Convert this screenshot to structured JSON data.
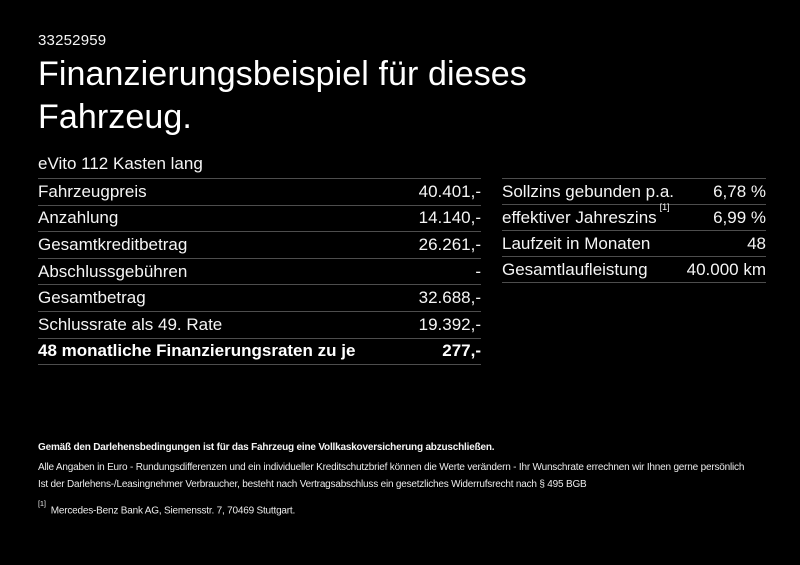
{
  "header": {
    "vehicle_id": "33252959",
    "title_line1": "Finanzierungsbeispiel für dieses",
    "title_line2": "Fahrzeug.",
    "model": "eVito 112 Kasten lang"
  },
  "finance_table": {
    "rows": [
      {
        "label": "Fahrzeugpreis",
        "value": "40.401,-"
      },
      {
        "label": "Anzahlung",
        "value": "14.140,-"
      },
      {
        "label": "Gesamtkreditbetrag",
        "value": "26.261,-"
      },
      {
        "label": "Abschlussgebühren",
        "value": "-"
      },
      {
        "label": "Gesamtbetrag",
        "value": "32.688,-"
      },
      {
        "label": "Schlussrate als 49. Rate",
        "value": "19.392,-"
      }
    ],
    "highlight_row": {
      "label": "48 monatliche Finanzierungsraten zu je",
      "value": "277,-"
    }
  },
  "conditions_table": {
    "rows": [
      {
        "label": "Sollzins gebunden p.a.",
        "value": "6,78 %"
      },
      {
        "label": "effektiver Jahreszins",
        "footnote_marker": "[1]",
        "value": "6,99 %"
      },
      {
        "label": "Laufzeit in Monaten",
        "value": "48"
      },
      {
        "label": "Gesamtlaufleistung",
        "value": "40.000 km"
      }
    ]
  },
  "disclaimer": {
    "insurance_note": "Gemäß den Darlehensbedingungen ist für das Fahrzeug eine Vollkaskoversicherung abzuschließen.",
    "note_line1": "Alle Angaben in Euro - Rundungsdifferenzen und ein individueller Kreditschutzbrief können die Werte verändern - Ihr Wunschrate errechnen wir Ihnen gerne persönlich",
    "note_line2": "Ist der Darlehens-/Leasingnehmer Verbraucher, besteht nach Vertragsabschluss ein gesetzliches Widerrufsrecht nach § 495 BGB",
    "footnote_marker": "[1]",
    "footnote_text": "Mercedes-Benz Bank AG, Siemensstr. 7, 70469 Stuttgart."
  },
  "colors": {
    "background": "#000000",
    "text": "#ffffff",
    "separator": "#4d4d4d"
  }
}
